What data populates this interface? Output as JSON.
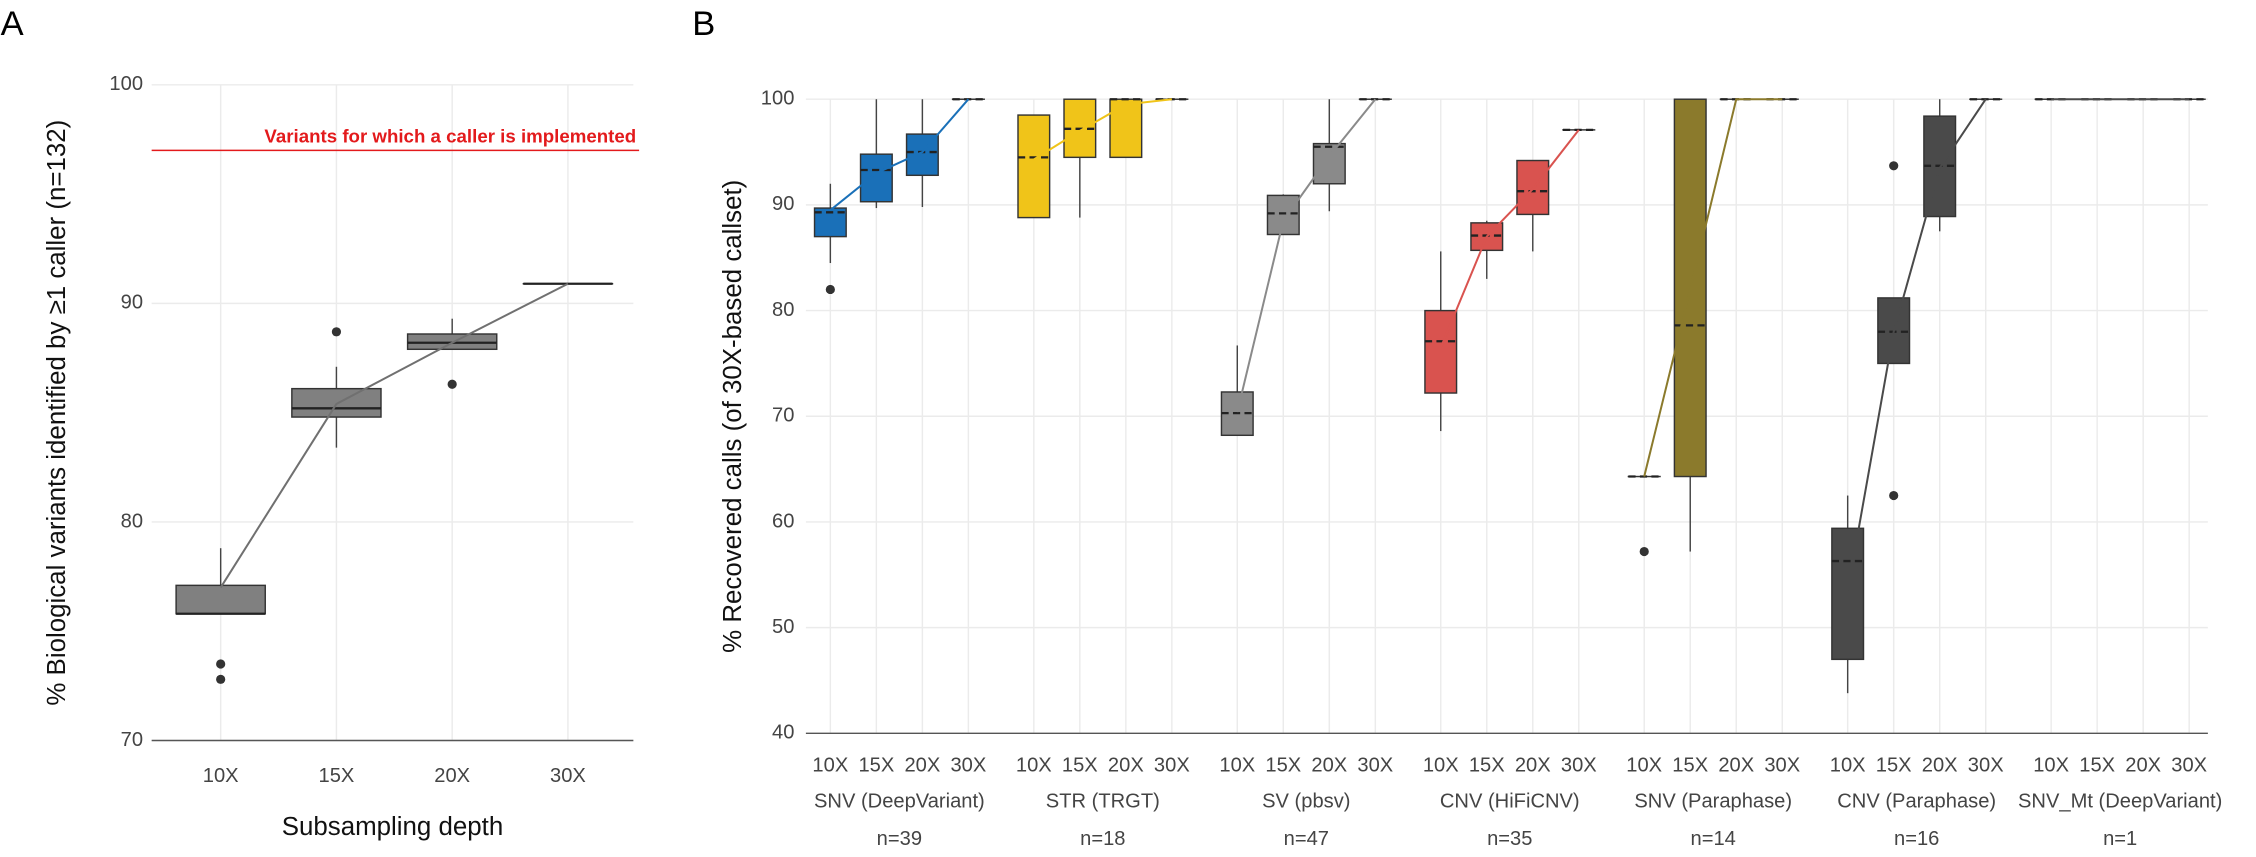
{
  "chart_data": [
    {
      "type": "box",
      "panel_label": "A",
      "ylabel": "% Biological variants identified by ≥1 caller (n=132)",
      "xlabel": "Subsampling depth",
      "categories": [
        "10X",
        "15X",
        "20X",
        "30X"
      ],
      "color": "#808080",
      "line_color": "#707070",
      "boxes": [
        {
          "low": 75.8,
          "q1": 75.8,
          "median": 75.8,
          "q3": 77.1,
          "high": 78.8,
          "outliers": [
            73.5,
            72.8
          ]
        },
        {
          "low": 83.4,
          "q1": 84.8,
          "median": 85.2,
          "q3": 86.1,
          "high": 87.1,
          "outliers": [
            88.7
          ]
        },
        {
          "low": 87.9,
          "q1": 87.9,
          "median": 88.2,
          "q3": 88.6,
          "high": 89.3,
          "outliers": [
            86.3
          ]
        },
        {
          "low": 90.9,
          "q1": 90.9,
          "median": 90.9,
          "q3": 90.9,
          "high": 90.9,
          "outliers": []
        }
      ],
      "means": [
        77.0,
        85.4,
        88.2,
        90.9
      ],
      "hline": {
        "value": 97,
        "label": "Variants for which a caller is implemented",
        "color": "#e31a1c"
      },
      "ylim": [
        70,
        100
      ],
      "yticks": [
        70,
        80,
        90,
        100
      ],
      "grid": true
    },
    {
      "type": "grouped-box",
      "panel_label": "B",
      "ylabel": "% Recovered calls (of 30X-based callset)",
      "categories": [
        "10X",
        "15X",
        "20X",
        "30X"
      ],
      "ylim": [
        40,
        100
      ],
      "yticks": [
        40,
        50,
        60,
        70,
        80,
        90,
        100
      ],
      "grid": true,
      "groups": [
        {
          "name": "SNV (DeepVariant)",
          "n_label": "n=39",
          "color": "#1a70b8",
          "boxes": [
            {
              "low": 84.5,
              "q1": 87,
              "median": 89.3,
              "q3": 89.7,
              "high": 92,
              "outliers": [
                82
              ]
            },
            {
              "low": 89.7,
              "q1": 90.3,
              "median": 93.3,
              "q3": 94.8,
              "high": 100,
              "outliers": []
            },
            {
              "low": 89.8,
              "q1": 92.8,
              "median": 95,
              "q3": 96.7,
              "high": 100,
              "outliers": []
            },
            {
              "low": 100,
              "q1": 100,
              "median": 100,
              "q3": 100,
              "high": 100,
              "outliers": []
            }
          ],
          "means": [
            89.5,
            93,
            95,
            100
          ]
        },
        {
          "name": "STR (TRGT)",
          "n_label": "n=18",
          "color": "#f0c419",
          "boxes": [
            {
              "low": 88.8,
              "q1": 88.8,
              "median": 94.5,
              "q3": 98.5,
              "high": 98.5,
              "outliers": []
            },
            {
              "low": 88.8,
              "q1": 94.5,
              "median": 97.2,
              "q3": 100,
              "high": 100,
              "outliers": []
            },
            {
              "low": 94.5,
              "q1": 94.5,
              "median": 100,
              "q3": 100,
              "high": 100,
              "outliers": []
            },
            {
              "low": 100,
              "q1": 100,
              "median": 100,
              "q3": 100,
              "high": 100,
              "outliers": []
            }
          ],
          "means": [
            94.3,
            97,
            99.5,
            100
          ]
        },
        {
          "name": "SV (pbsv)",
          "n_label": "n=47",
          "color": "#8a8a8a",
          "boxes": [
            {
              "low": 68.2,
              "q1": 68.2,
              "median": 70.3,
              "q3": 72.3,
              "high": 76.7,
              "outliers": []
            },
            {
              "low": 87.2,
              "q1": 87.2,
              "median": 89.2,
              "q3": 90.9,
              "high": 91,
              "outliers": []
            },
            {
              "low": 89.4,
              "q1": 92,
              "median": 95.5,
              "q3": 95.8,
              "high": 100,
              "outliers": []
            },
            {
              "low": 100,
              "q1": 100,
              "median": 100,
              "q3": 100,
              "high": 100,
              "outliers": []
            }
          ],
          "means": [
            70.4,
            88.5,
            94.6,
            100
          ]
        },
        {
          "name": "CNV (HiFiCNV)",
          "n_label": "n=35",
          "color": "#d9534f",
          "boxes": [
            {
              "low": 68.6,
              "q1": 72.2,
              "median": 77.1,
              "q3": 80,
              "high": 85.6,
              "outliers": []
            },
            {
              "low": 83,
              "q1": 85.7,
              "median": 87.1,
              "q3": 88.3,
              "high": 88.5,
              "outliers": []
            },
            {
              "low": 85.6,
              "q1": 89.1,
              "median": 91.3,
              "q3": 94.2,
              "high": 94.2,
              "outliers": []
            },
            {
              "low": 97.1,
              "q1": 97.1,
              "median": 97.1,
              "q3": 97.1,
              "high": 97.1,
              "outliers": []
            }
          ],
          "means": [
            76.5,
            87,
            91.5,
            97.1
          ]
        },
        {
          "name": "SNV (Paraphase)",
          "n_label": "n=14",
          "color": "#8b7a2c",
          "boxes": [
            {
              "low": 64.3,
              "q1": 64.3,
              "median": 64.3,
              "q3": 64.3,
              "high": 64.3,
              "outliers": [
                57.2
              ]
            },
            {
              "low": 57.2,
              "q1": 64.3,
              "median": 78.6,
              "q3": 100,
              "high": 100,
              "outliers": []
            },
            {
              "low": 100,
              "q1": 100,
              "median": 100,
              "q3": 100,
              "high": 100,
              "outliers": []
            },
            {
              "low": 100,
              "q1": 100,
              "median": 100,
              "q3": 100,
              "high": 100,
              "outliers": []
            }
          ],
          "means": [
            64.3,
            82,
            100,
            100
          ]
        },
        {
          "name": "CNV (Paraphase)",
          "n_label": "n=16",
          "color": "#4a4a4a",
          "boxes": [
            {
              "low": 43.8,
              "q1": 47,
              "median": 56.3,
              "q3": 59.4,
              "high": 62.5,
              "outliers": []
            },
            {
              "low": 75,
              "q1": 75,
              "median": 78,
              "q3": 81.2,
              "high": 81.2,
              "outliers": [
                93.7,
                62.5
              ]
            },
            {
              "low": 87.5,
              "q1": 88.9,
              "median": 93.7,
              "q3": 98.4,
              "high": 100,
              "outliers": []
            },
            {
              "low": 100,
              "q1": 100,
              "median": 100,
              "q3": 100,
              "high": 100,
              "outliers": []
            }
          ],
          "means": [
            53.5,
            78,
            93.5,
            100
          ]
        },
        {
          "name": "SNV_Mt (DeepVariant)",
          "n_label": "n=1",
          "color": "#4a4a4a",
          "boxes": [
            {
              "low": 100,
              "q1": 100,
              "median": 100,
              "q3": 100,
              "high": 100,
              "outliers": []
            },
            {
              "low": 100,
              "q1": 100,
              "median": 100,
              "q3": 100,
              "high": 100,
              "outliers": []
            },
            {
              "low": 100,
              "q1": 100,
              "median": 100,
              "q3": 100,
              "high": 100,
              "outliers": []
            },
            {
              "low": 100,
              "q1": 100,
              "median": 100,
              "q3": 100,
              "high": 100,
              "outliers": []
            }
          ],
          "means": [
            100,
            100,
            100,
            100
          ]
        }
      ]
    }
  ]
}
